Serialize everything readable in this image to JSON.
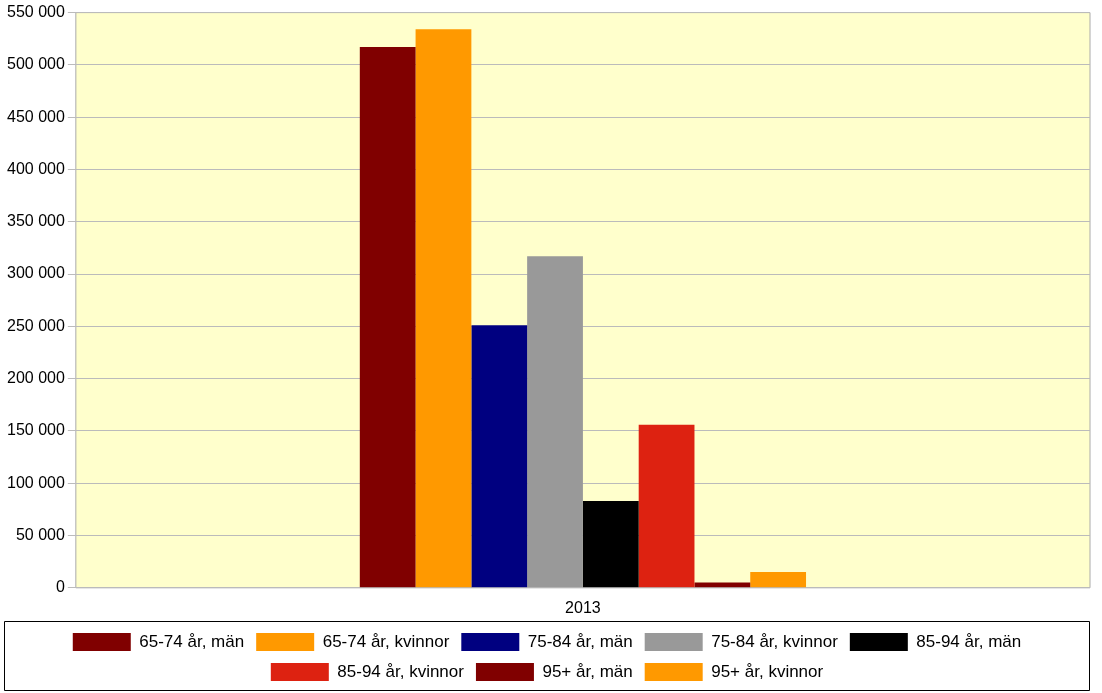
{
  "chart_data": {
    "type": "bar",
    "categories": [
      "2013"
    ],
    "series": [
      {
        "name": "65-74 år, män",
        "color": "#800000",
        "values": [
          517000
        ]
      },
      {
        "name": "65-74 år, kvinnor",
        "color": "#ff9900",
        "values": [
          534000
        ]
      },
      {
        "name": "75-84 år, män",
        "color": "#000080",
        "values": [
          251000
        ]
      },
      {
        "name": "75-84 år, kvinnor",
        "color": "#999999",
        "values": [
          317000
        ]
      },
      {
        "name": "85-94 år, män",
        "color": "#000000",
        "values": [
          83000
        ]
      },
      {
        "name": "85-94 år, kvinnor",
        "color": "#dd2211",
        "values": [
          156000
        ]
      },
      {
        "name": "95+ år, män",
        "color": "#800000",
        "values": [
          5000
        ]
      },
      {
        "name": "95+ år, kvinnor",
        "color": "#ff9900",
        "values": [
          15000
        ]
      }
    ],
    "ylim": [
      0,
      550000
    ],
    "yticks": [
      {
        "value": 0,
        "label": "0"
      },
      {
        "value": 50000,
        "label": "50 000"
      },
      {
        "value": 100000,
        "label": "100 000"
      },
      {
        "value": 150000,
        "label": "150 000"
      },
      {
        "value": 200000,
        "label": "200 000"
      },
      {
        "value": 250000,
        "label": "250 000"
      },
      {
        "value": 300000,
        "label": "300 000"
      },
      {
        "value": 350000,
        "label": "350 000"
      },
      {
        "value": 400000,
        "label": "400 000"
      },
      {
        "value": 450000,
        "label": "450 000"
      },
      {
        "value": 500000,
        "label": "500 000"
      },
      {
        "value": 550000,
        "label": "550 000"
      }
    ],
    "grid": "y",
    "legend": "bottom"
  }
}
